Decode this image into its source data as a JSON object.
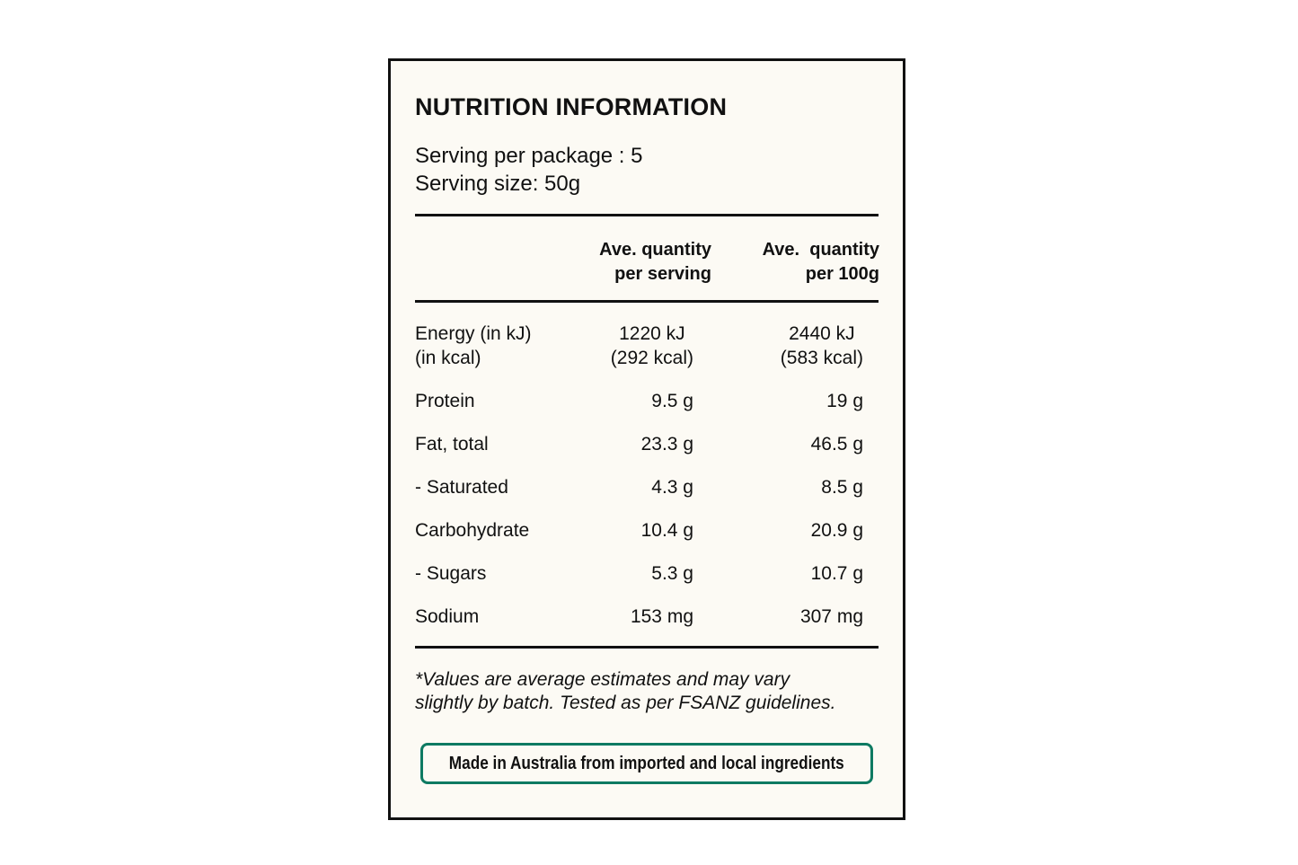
{
  "panel": {
    "title": "NUTRITION INFORMATION",
    "servings_per_package": "Serving per package : 5",
    "serving_size": "Serving size: 50g"
  },
  "table": {
    "headers": {
      "per_serving_line1": "Ave. quantity",
      "per_serving_line2": "per serving",
      "per_100g_line1": "Ave.  quantity",
      "per_100g_line2": "per 100g"
    },
    "rows": [
      {
        "label": "Energy (in kJ)",
        "label2": "(in kcal)",
        "per_serving": "1220 kJ",
        "per_serving2": "(292 kcal)",
        "per_100g": "2440 kJ",
        "per_100g2": "(583 kcal)"
      },
      {
        "label": "Protein",
        "per_serving": "9.5 g",
        "per_100g": "19 g"
      },
      {
        "label": "Fat, total",
        "per_serving": "23.3 g",
        "per_100g": "46.5 g"
      },
      {
        "label": "- Saturated",
        "per_serving": "4.3 g",
        "per_100g": "8.5 g"
      },
      {
        "label": "Carbohydrate",
        "per_serving": "10.4 g",
        "per_100g": "20.9 g"
      },
      {
        "label": "- Sugars",
        "per_serving": "5.3 g",
        "per_100g": "10.7 g"
      },
      {
        "label": "Sodium",
        "per_serving": "153 mg",
        "per_100g": "307 mg"
      }
    ]
  },
  "footnote": {
    "line1": "*Values are average estimates and may vary",
    "line2": "slightly by batch. Tested as per FSANZ guidelines."
  },
  "badge": {
    "text": "Made in Australia from imported and local ingredients",
    "border_color": "#0e7a62"
  },
  "colors": {
    "panel_background": "#fcfaf4",
    "ink": "#111111"
  }
}
